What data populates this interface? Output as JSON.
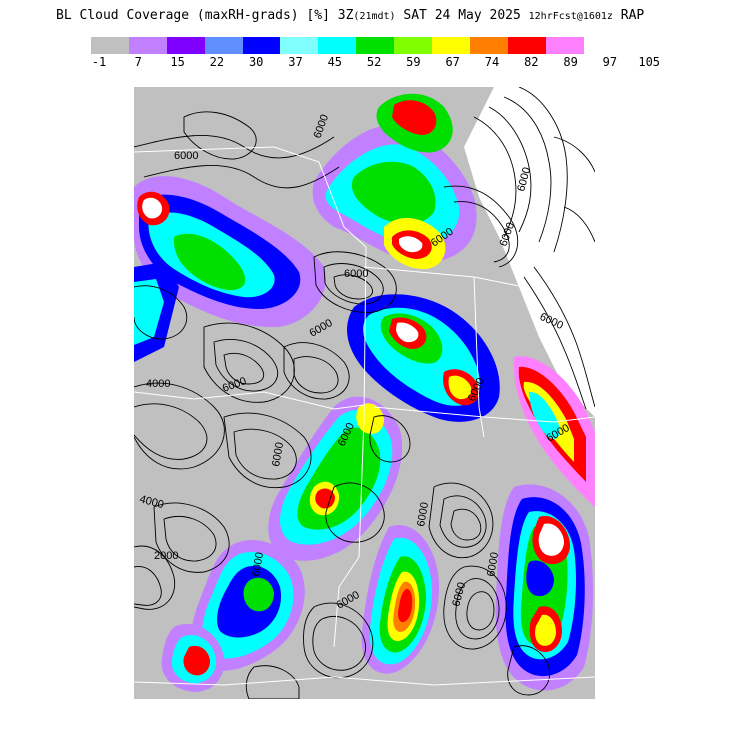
{
  "title": {
    "main": "BL Cloud Coverage (maxRH-grads) [%] 3Z",
    "local": "(21mdt)",
    "date": " SAT 24 May 2025 ",
    "forecast": "12hrFcst@1601z",
    "model": " RAP"
  },
  "legend": {
    "colors": [
      "#c0c0c0",
      "#c080ff",
      "#8000ff",
      "#6090ff",
      "#0000ff",
      "#80ffff",
      "#00ffff",
      "#00e000",
      "#80ff00",
      "#ffff00",
      "#ff8000",
      "#ff0000",
      "#ff80ff"
    ],
    "ticks": [
      "-1",
      "7",
      "15",
      "22",
      "30",
      "37",
      "45",
      "52",
      "59",
      "67",
      "74",
      "82",
      "89",
      "97",
      "105"
    ]
  },
  "map": {
    "contour_labels": [
      "6000",
      "6000",
      "6000",
      "6000",
      "6000",
      "6000",
      "6000",
      "6000",
      "6000",
      "6000",
      "6000",
      "6000",
      "4000",
      "4000",
      "2000",
      "6000",
      "6000",
      "6000",
      "6000",
      "6000",
      "6000"
    ]
  }
}
